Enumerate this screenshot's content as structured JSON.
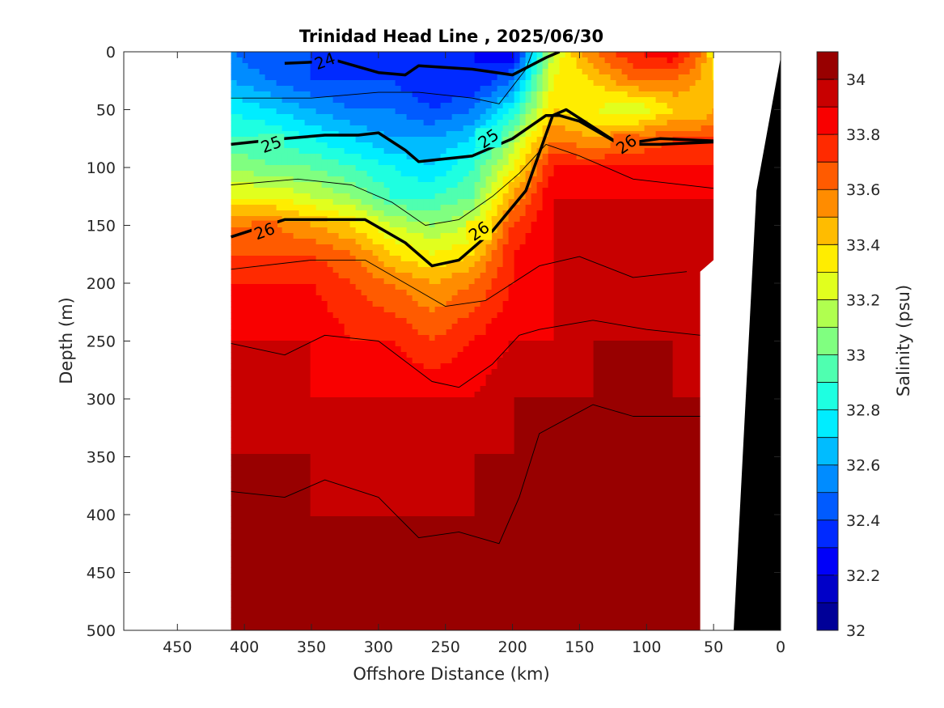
{
  "chart_data": {
    "type": "contour",
    "title": "Trinidad Head Line , 2025/06/30",
    "xlabel": "Offshore Distance (km)",
    "ylabel": "Depth (m)",
    "xlim": [
      490,
      0
    ],
    "ylim": [
      0,
      500
    ],
    "x_reversed": true,
    "y_reversed": true,
    "x_ticks": [
      450,
      400,
      350,
      300,
      250,
      200,
      150,
      100,
      50,
      0
    ],
    "y_ticks": [
      0,
      50,
      100,
      150,
      200,
      250,
      300,
      350,
      400,
      450,
      500
    ],
    "data_extent_km": [
      410,
      50
    ],
    "colorbar": {
      "label": "Salinity (psu)",
      "range": [
        32.0,
        34.1
      ],
      "step": 0.1,
      "ticks": [
        32,
        32.2,
        32.4,
        32.6,
        32.8,
        33,
        33.2,
        33.4,
        33.6,
        33.8,
        34
      ],
      "colormap": "jet"
    },
    "salinity_grid": {
      "distance_km": [
        410,
        380,
        350,
        320,
        290,
        260,
        230,
        200,
        170,
        140,
        110,
        80,
        60,
        50
      ],
      "depth_m": [
        0,
        25,
        50,
        75,
        100,
        125,
        150,
        175,
        200,
        250,
        300,
        350,
        400,
        450,
        500
      ],
      "values": [
        [
          32.5,
          32.4,
          32.4,
          32.3,
          32.3,
          32.3,
          32.3,
          32.2,
          33.2,
          33.6,
          33.8,
          33.9,
          33.6,
          33.3
        ],
        [
          32.6,
          32.5,
          32.4,
          32.4,
          32.4,
          32.3,
          32.3,
          32.5,
          33.3,
          33.4,
          33.6,
          33.6,
          33.5,
          33.4
        ],
        [
          32.8,
          32.7,
          32.6,
          32.5,
          32.5,
          32.4,
          32.5,
          32.8,
          33.4,
          33.3,
          33.2,
          33.4,
          33.4,
          33.5
        ],
        [
          32.9,
          32.9,
          32.8,
          32.7,
          32.6,
          32.6,
          32.7,
          33.1,
          33.6,
          33.5,
          33.6,
          33.7,
          33.7,
          33.7
        ],
        [
          33.1,
          33.0,
          33.0,
          32.9,
          32.8,
          32.7,
          32.9,
          33.3,
          33.8,
          33.8,
          33.8,
          33.8,
          33.8,
          33.8
        ],
        [
          33.3,
          33.3,
          33.2,
          33.1,
          32.9,
          32.9,
          33.0,
          33.5,
          33.9,
          33.9,
          33.9,
          33.9,
          33.9,
          33.9
        ],
        [
          33.6,
          33.6,
          33.5,
          33.4,
          33.2,
          33.1,
          33.2,
          33.7,
          33.9,
          33.9,
          33.9,
          33.9,
          33.9,
          33.9
        ],
        [
          33.7,
          33.7,
          33.7,
          33.6,
          33.4,
          33.3,
          33.4,
          33.8,
          33.9,
          33.9,
          33.9,
          33.9,
          33.9,
          33.9
        ],
        [
          33.8,
          33.8,
          33.8,
          33.7,
          33.6,
          33.5,
          33.6,
          33.8,
          33.9,
          34.0,
          33.9,
          33.9,
          33.9,
          33.9
        ],
        [
          33.9,
          33.9,
          33.9,
          33.8,
          33.8,
          33.7,
          33.8,
          33.9,
          33.9,
          34.0,
          34.0,
          34.0,
          33.9,
          33.9
        ],
        [
          34.0,
          33.9,
          33.9,
          33.9,
          33.9,
          33.9,
          33.9,
          34.0,
          34.0,
          34.0,
          34.0,
          34.0,
          34.0,
          34.0
        ],
        [
          34.0,
          34.0,
          34.0,
          33.9,
          33.9,
          33.9,
          34.0,
          34.0,
          34.0,
          34.0,
          34.0,
          34.0,
          34.0,
          34.0
        ],
        [
          34.0,
          34.0,
          34.0,
          34.0,
          34.0,
          34.0,
          34.0,
          34.0,
          34.0,
          34.0,
          34.0,
          34.0,
          34.0,
          34.0
        ],
        [
          34.0,
          34.0,
          34.0,
          34.0,
          34.0,
          34.0,
          34.0,
          34.0,
          34.0,
          34.1,
          34.0,
          34.0,
          34.0,
          34.0
        ],
        [
          34.0,
          34.0,
          34.0,
          34.0,
          34.0,
          34.0,
          34.0,
          34.0,
          34.0,
          34.1,
          34.1,
          34.0,
          34.0,
          34.0
        ]
      ]
    },
    "density_contours": [
      {
        "level": "24",
        "bold": true,
        "label": "24",
        "label_at": [
          340,
          8
        ],
        "points": [
          [
            370,
            10
          ],
          [
            330,
            8
          ],
          [
            300,
            18
          ],
          [
            280,
            20
          ],
          [
            270,
            12
          ],
          [
            230,
            15
          ],
          [
            200,
            20
          ],
          [
            175,
            5
          ],
          [
            165,
            0
          ]
        ]
      },
      {
        "level": "25",
        "bold": true,
        "label": "25",
        "label_at": [
          380,
          80
        ],
        "points": [
          [
            410,
            80
          ],
          [
            370,
            75
          ],
          [
            340,
            72
          ],
          [
            315,
            72
          ],
          [
            300,
            70
          ],
          [
            280,
            85
          ],
          [
            270,
            95
          ],
          [
            230,
            90
          ],
          [
            200,
            75
          ],
          [
            175,
            55
          ],
          [
            165,
            55
          ],
          [
            150,
            60
          ],
          [
            120,
            80
          ],
          [
            90,
            80
          ],
          [
            50,
            78
          ]
        ]
      },
      {
        "level": "26",
        "bold": true,
        "label": "26",
        "label_at": [
          385,
          155
        ],
        "points": [
          [
            410,
            160
          ],
          [
            370,
            145
          ],
          [
            340,
            145
          ],
          [
            310,
            145
          ],
          [
            280,
            165
          ],
          [
            260,
            185
          ],
          [
            240,
            180
          ],
          [
            215,
            155
          ],
          [
            190,
            120
          ],
          [
            170,
            55
          ],
          [
            160,
            50
          ],
          [
            140,
            65
          ],
          [
            120,
            80
          ],
          [
            90,
            75
          ],
          [
            50,
            77
          ]
        ]
      },
      {
        "level": "",
        "bold": false,
        "label": "",
        "label_at": null,
        "points": [
          [
            410,
            40
          ],
          [
            350,
            40
          ],
          [
            300,
            35
          ],
          [
            270,
            35
          ],
          [
            230,
            40
          ],
          [
            210,
            45
          ],
          [
            190,
            15
          ],
          [
            185,
            0
          ]
        ]
      },
      {
        "level": "",
        "bold": false,
        "label": "",
        "label_at": null,
        "points": [
          [
            410,
            115
          ],
          [
            360,
            110
          ],
          [
            320,
            115
          ],
          [
            290,
            130
          ],
          [
            265,
            150
          ],
          [
            240,
            145
          ],
          [
            215,
            125
          ],
          [
            195,
            105
          ],
          [
            175,
            80
          ],
          [
            150,
            90
          ],
          [
            110,
            110
          ],
          [
            50,
            118
          ]
        ]
      },
      {
        "level": "",
        "bold": false,
        "label": "",
        "label_at": null,
        "points": [
          [
            410,
            188
          ],
          [
            350,
            180
          ],
          [
            310,
            180
          ],
          [
            280,
            200
          ],
          [
            250,
            220
          ],
          [
            220,
            215
          ],
          [
            200,
            200
          ],
          [
            180,
            185
          ],
          [
            150,
            177
          ],
          [
            110,
            195
          ],
          [
            70,
            190
          ]
        ]
      },
      {
        "level": "",
        "bold": false,
        "label": "",
        "label_at": null,
        "points": [
          [
            410,
            252
          ],
          [
            370,
            262
          ],
          [
            340,
            245
          ],
          [
            300,
            250
          ],
          [
            260,
            285
          ],
          [
            240,
            290
          ],
          [
            215,
            270
          ],
          [
            195,
            245
          ],
          [
            180,
            240
          ],
          [
            140,
            232
          ],
          [
            100,
            240
          ],
          [
            60,
            245
          ]
        ]
      },
      {
        "level": "",
        "bold": false,
        "label": "",
        "label_at": null,
        "points": [
          [
            410,
            380
          ],
          [
            370,
            385
          ],
          [
            340,
            370
          ],
          [
            300,
            385
          ],
          [
            270,
            420
          ],
          [
            240,
            415
          ],
          [
            210,
            425
          ],
          [
            195,
            385
          ],
          [
            180,
            330
          ],
          [
            140,
            305
          ],
          [
            110,
            315
          ],
          [
            60,
            315
          ]
        ]
      }
    ],
    "bathymetry": {
      "color": "#000000",
      "points": [
        [
          35,
          500
        ],
        [
          18,
          120
        ],
        [
          0,
          5
        ],
        [
          0,
          500
        ]
      ]
    },
    "white_mask_near_shore": {
      "points": [
        [
          60,
          500
        ],
        [
          60,
          190
        ],
        [
          50,
          180
        ],
        [
          50,
          0
        ],
        [
          0,
          0
        ],
        [
          0,
          5
        ],
        [
          18,
          120
        ],
        [
          35,
          500
        ]
      ]
    }
  }
}
